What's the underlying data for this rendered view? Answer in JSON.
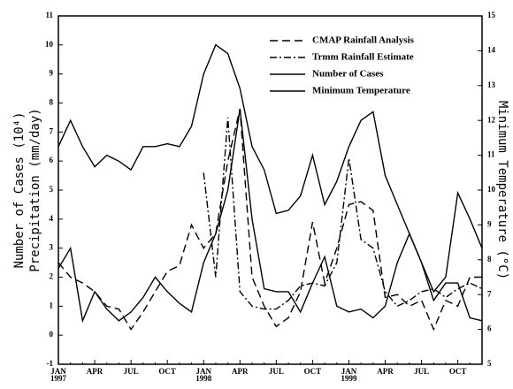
{
  "chart_data": {
    "type": "line",
    "ylabel": [
      "Number of Cases (10⁴)",
      "Precipitation (mm/day)"
    ],
    "y2label": "Minimum Temperature (°C)",
    "categories": [
      "JAN 1997",
      null,
      null,
      "APR",
      null,
      null,
      "JUL",
      null,
      null,
      "OCT",
      null,
      null,
      "JAN 1998",
      null,
      null,
      "APR",
      null,
      null,
      "JUL",
      null,
      null,
      "OCT",
      null,
      null,
      "JAN 1999",
      null,
      null,
      "APR",
      null,
      null,
      "JUL",
      null,
      null,
      "OCT",
      null,
      null
    ],
    "ylim": [
      -1,
      11
    ],
    "yticks": [
      -1,
      0,
      1,
      2,
      3,
      4,
      5,
      6,
      7,
      8,
      9,
      10,
      11
    ],
    "y2lim": [
      5,
      15
    ],
    "y2ticks": [
      5,
      6,
      7,
      8,
      9,
      10,
      11,
      12,
      13,
      14,
      15
    ],
    "legend": "upper right",
    "series": [
      {
        "name": "CMAP Rainfall Analysis",
        "color": "#000000",
        "dash": "dashed",
        "values": [
          2.5,
          2.0,
          1.8,
          1.5,
          1.0,
          0.9,
          0.2,
          0.8,
          1.5,
          2.2,
          2.4,
          3.8,
          3.0,
          3.5,
          6.0,
          7.8,
          2.0,
          1.0,
          0.3,
          0.6,
          1.5,
          3.9,
          1.8,
          3.0,
          4.5,
          4.6,
          4.3,
          1.3,
          1.4,
          1.0,
          1.2,
          0.2,
          1.2,
          1.0,
          2.0,
          2.0
        ]
      },
      {
        "name": "Trmm Rainfall Estimate",
        "color": "#000000",
        "dash": "dashdot",
        "values": [
          null,
          null,
          null,
          null,
          null,
          null,
          null,
          null,
          null,
          null,
          null,
          null,
          5.6,
          2.0,
          7.5,
          1.5,
          1.0,
          0.9,
          0.9,
          1.2,
          1.7,
          1.8,
          1.7,
          2.5,
          6.1,
          3.3,
          3.0,
          1.5,
          1.0,
          1.2,
          1.5,
          1.6,
          1.3,
          1.6,
          1.8,
          1.6
        ]
      },
      {
        "name": "Number of Cases",
        "color": "#000000",
        "dash": "solid",
        "values": [
          2.3,
          3.0,
          0.5,
          1.5,
          0.9,
          0.5,
          0.8,
          1.3,
          2.0,
          1.5,
          1.1,
          0.8,
          2.5,
          3.5,
          5.0,
          7.8,
          4.0,
          1.6,
          1.5,
          1.5,
          0.8,
          1.8,
          2.7,
          1.0,
          0.8,
          0.9,
          0.6,
          1.0,
          2.5,
          3.5,
          2.5,
          1.2,
          1.8,
          1.8,
          0.6,
          0.5
        ]
      },
      {
        "name": "Minimum Temperature",
        "color": "#000000",
        "dash": "solid",
        "axis": "y2",
        "values": [
          11.25,
          12.0,
          11.25,
          10.67,
          11.0,
          10.83,
          10.58,
          11.25,
          11.25,
          11.33,
          11.25,
          11.83,
          13.33,
          14.17,
          13.92,
          12.92,
          11.25,
          10.58,
          9.33,
          9.42,
          9.83,
          11.0,
          9.58,
          10.25,
          11.25,
          12.0,
          12.25,
          10.42,
          9.58,
          8.75,
          7.92,
          7.08,
          7.5,
          9.92,
          9.17,
          8.33
        ]
      }
    ]
  }
}
